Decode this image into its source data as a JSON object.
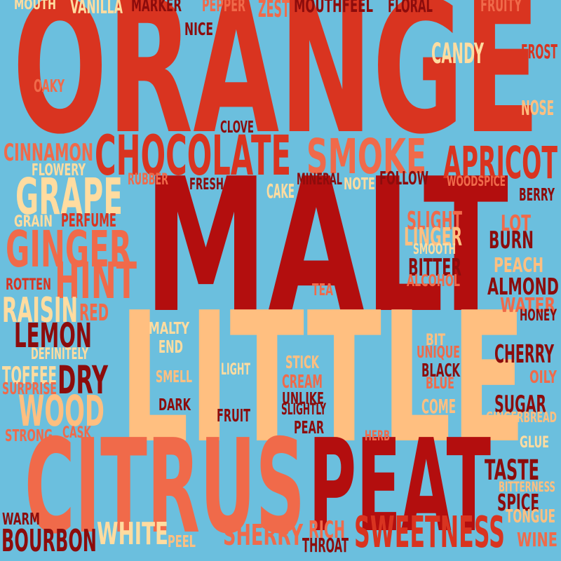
{
  "colors": {
    "background": "#6bbfde",
    "palette": [
      "#d93420",
      "#b30e0e",
      "#f06a4a",
      "#ffbf80",
      "#8c0c0c",
      "#ffdca0"
    ]
  },
  "words": [
    {
      "text": "ORANGE",
      "color": "#d93420"
    },
    {
      "text": "MALT",
      "color": "#b30e0e"
    },
    {
      "text": "LITTLE",
      "color": "#ffbf80"
    },
    {
      "text": "CITRUS",
      "color": "#f06a4a"
    },
    {
      "text": "PEAT",
      "color": "#b30e0e"
    },
    {
      "text": "CHOCOLATE",
      "color": "#d93420"
    },
    {
      "text": "SMOKE",
      "color": "#f06a4a"
    },
    {
      "text": "APRICOT",
      "color": "#d93420"
    },
    {
      "text": "GRAPE",
      "color": "#ffdca0"
    },
    {
      "text": "GINGER",
      "color": "#f06a4a"
    },
    {
      "text": "HINT",
      "color": "#f06a4a"
    },
    {
      "text": "RAISIN",
      "color": "#ffdca0"
    },
    {
      "text": "LEMON",
      "color": "#8c0c0c"
    },
    {
      "text": "DRY",
      "color": "#8c0c0c"
    },
    {
      "text": "WOOD",
      "color": "#ffbf80"
    },
    {
      "text": "SWEETNESS",
      "color": "#d93420"
    },
    {
      "text": "WHITE",
      "color": "#ffdca0"
    },
    {
      "text": "SHERRY",
      "color": "#f06a4a"
    },
    {
      "text": "BOURBON",
      "color": "#8c0c0c"
    },
    {
      "text": "CANDY",
      "color": "#ffdca0"
    },
    {
      "text": "FROST",
      "color": "#d93420"
    },
    {
      "text": "NOSE",
      "color": "#ffbf80"
    },
    {
      "text": "FRUITY",
      "color": "#f06a4a"
    },
    {
      "text": "FLORAL",
      "color": "#8c0c0c"
    },
    {
      "text": "MOUTHFEEL",
      "color": "#8c0c0c"
    },
    {
      "text": "ZEST",
      "color": "#f06a4a"
    },
    {
      "text": "PEPPER",
      "color": "#f06a4a"
    },
    {
      "text": "MARKER",
      "color": "#8c0c0c"
    },
    {
      "text": "VANILLA",
      "color": "#ffdca0"
    },
    {
      "text": "MOUTH",
      "color": "#ffdca0"
    },
    {
      "text": "NICE",
      "color": "#8c0c0c"
    },
    {
      "text": "OAKY",
      "color": "#f06a4a"
    },
    {
      "text": "CLOVE",
      "color": "#8c0c0c"
    },
    {
      "text": "CINNAMON",
      "color": "#f06a4a"
    },
    {
      "text": "FLOWERY",
      "color": "#ffdca0"
    },
    {
      "text": "RUBBER",
      "color": "#f06a4a"
    },
    {
      "text": "FRESH",
      "color": "#8c0c0c"
    },
    {
      "text": "CAKE",
      "color": "#ffdca0"
    },
    {
      "text": "MINERAL",
      "color": "#8c0c0c"
    },
    {
      "text": "NOTE",
      "color": "#ffdca0"
    },
    {
      "text": "FOLLOW",
      "color": "#8c0c0c"
    },
    {
      "text": "WOODSPICE",
      "color": "#f06a4a"
    },
    {
      "text": "BERRY",
      "color": "#8c0c0c"
    },
    {
      "text": "GRAIN",
      "color": "#ffdca0"
    },
    {
      "text": "PERFUME",
      "color": "#d93420"
    },
    {
      "text": "SLIGHT",
      "color": "#f06a4a"
    },
    {
      "text": "LINGER",
      "color": "#ffbf80"
    },
    {
      "text": "SMOOTH",
      "color": "#ffdca0"
    },
    {
      "text": "LOT",
      "color": "#f06a4a"
    },
    {
      "text": "BURN",
      "color": "#8c0c0c"
    },
    {
      "text": "BITTER",
      "color": "#8c0c0c"
    },
    {
      "text": "ALCOHOL",
      "color": "#f06a4a"
    },
    {
      "text": "PEACH",
      "color": "#ffbf80"
    },
    {
      "text": "ALMOND",
      "color": "#8c0c0c"
    },
    {
      "text": "WATER",
      "color": "#f06a4a"
    },
    {
      "text": "HONEY",
      "color": "#8c0c0c"
    },
    {
      "text": "ROTTEN",
      "color": "#d93420"
    },
    {
      "text": "TEA",
      "color": "#f06a4a"
    },
    {
      "text": "RED",
      "color": "#f06a4a"
    },
    {
      "text": "DEFINITELY",
      "color": "#ffdca0"
    },
    {
      "text": "TOFFEE",
      "color": "#ffdca0"
    },
    {
      "text": "SURPRISE",
      "color": "#f06a4a"
    },
    {
      "text": "CASK",
      "color": "#f06a4a"
    },
    {
      "text": "STRONG",
      "color": "#f06a4a"
    },
    {
      "text": "MALTY",
      "color": "#ffdca0"
    },
    {
      "text": "END",
      "color": "#ffdca0"
    },
    {
      "text": "SMELL",
      "color": "#ffbf80"
    },
    {
      "text": "LIGHT",
      "color": "#ffdca0"
    },
    {
      "text": "STICK",
      "color": "#ffbf80"
    },
    {
      "text": "CREAM",
      "color": "#f06a4a"
    },
    {
      "text": "UNLIKE",
      "color": "#8c0c0c"
    },
    {
      "text": "SLIGHTLY",
      "color": "#8c0c0c"
    },
    {
      "text": "BIT",
      "color": "#ffbf80"
    },
    {
      "text": "UNIQUE",
      "color": "#f06a4a"
    },
    {
      "text": "BLACK",
      "color": "#8c0c0c"
    },
    {
      "text": "BLUE",
      "color": "#f06a4a"
    },
    {
      "text": "CHERRY",
      "color": "#8c0c0c"
    },
    {
      "text": "OILY",
      "color": "#f06a4a"
    },
    {
      "text": "DARK",
      "color": "#8c0c0c"
    },
    {
      "text": "FRUIT",
      "color": "#8c0c0c"
    },
    {
      "text": "COME",
      "color": "#ffbf80"
    },
    {
      "text": "SUGAR",
      "color": "#8c0c0c"
    },
    {
      "text": "GINGERBREAD",
      "color": "#ffbf80"
    },
    {
      "text": "PEAR",
      "color": "#8c0c0c"
    },
    {
      "text": "HERB",
      "color": "#f06a4a"
    },
    {
      "text": "GLUE",
      "color": "#ffdca0"
    },
    {
      "text": "TASTE",
      "color": "#8c0c0c"
    },
    {
      "text": "BITTERNESS",
      "color": "#ffbf80"
    },
    {
      "text": "SPICE",
      "color": "#8c0c0c"
    },
    {
      "text": "TONGUE",
      "color": "#ffbf80"
    },
    {
      "text": "WINE",
      "color": "#f06a4a"
    },
    {
      "text": "RICH",
      "color": "#f06a4a"
    },
    {
      "text": "THROAT",
      "color": "#8c0c0c"
    },
    {
      "text": "WARM",
      "color": "#8c0c0c"
    },
    {
      "text": "PEEL",
      "color": "#ffbf80"
    }
  ]
}
